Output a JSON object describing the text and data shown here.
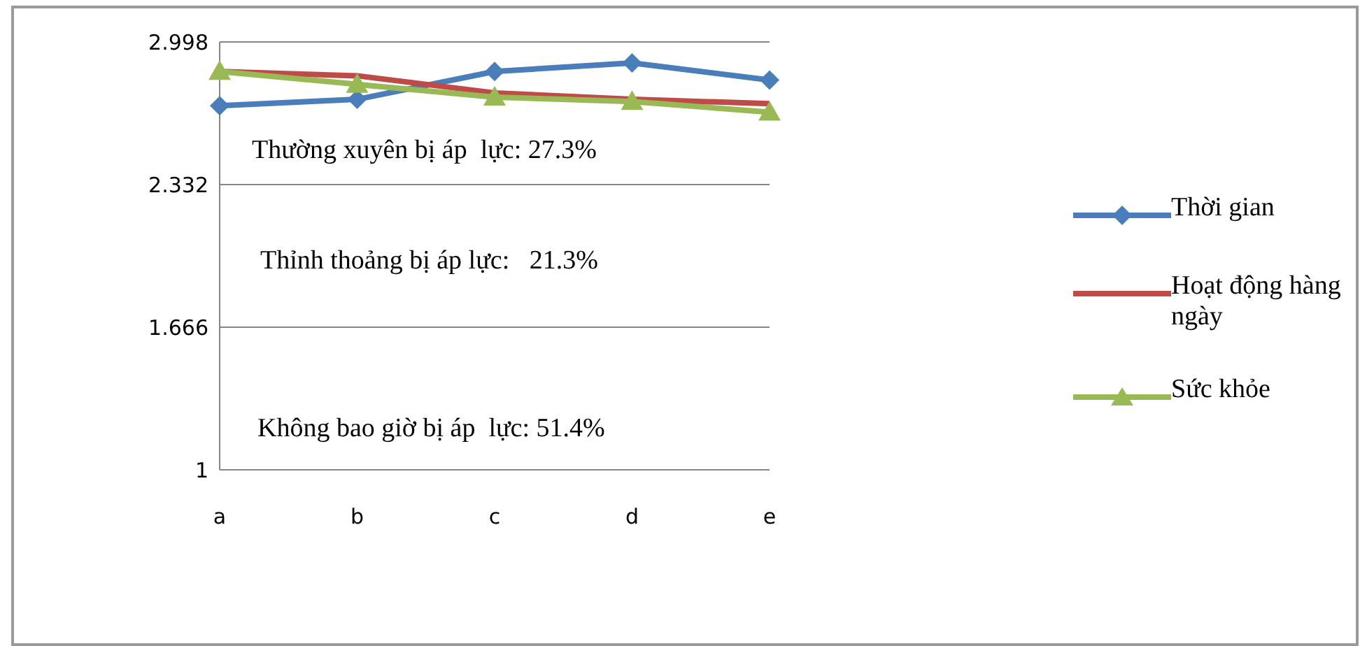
{
  "chart_data": {
    "type": "line",
    "categories": [
      "a",
      "b",
      "c",
      "d",
      "e"
    ],
    "series": [
      {
        "name": "Thời gian",
        "color": "#4a7ebb",
        "marker": "diamond",
        "values": [
          2.7,
          2.73,
          2.86,
          2.9,
          2.82
        ]
      },
      {
        "name": "Hoạt động hàng ngày",
        "color": "#be4b48",
        "marker": "none",
        "values": [
          2.86,
          2.84,
          2.76,
          2.73,
          2.71
        ]
      },
      {
        "name": "Sức khỏe",
        "color": "#98b954",
        "marker": "triangle",
        "values": [
          2.86,
          2.8,
          2.74,
          2.72,
          2.67
        ]
      }
    ],
    "ylim": [
      1,
      2.998
    ],
    "yticks": [
      1,
      1.666,
      2.332,
      2.998
    ],
    "grid": "y",
    "legend": "right",
    "annotations": [
      "Thường xuyên bị áp  lực: 27.3%",
      "Thỉnh thoảng bị áp lực:   21.3%",
      "Không bao giờ bị áp  lực: 51.4%"
    ]
  }
}
